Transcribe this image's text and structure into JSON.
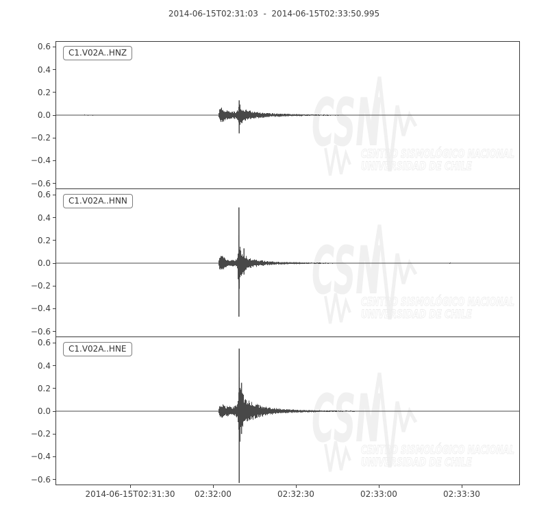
{
  "title": "2014-06-15T02:31:03  -  2014-06-15T02:33:50.995",
  "colors": {
    "background": "#ffffff",
    "trace": "#484848",
    "frame": "#3a3a3a",
    "text": "#3d3d3d",
    "label_text": "#333333",
    "label_border": "#7d7d7d",
    "watermark": "#f0f0f0",
    "watermark_outline": "#ececec"
  },
  "watermark": {
    "logo": "CSN",
    "line1": "CENTRO SISMOLÓGICO NACIONAL",
    "line2": "UNIVERSIDAD DE CHILE"
  },
  "chart_data": {
    "type": "line",
    "title": "2014-06-15T02:31:03  -  2014-06-15T02:33:50.995",
    "start_time": "2014-06-15T02:31:03",
    "end_time": "2014-06-15T02:33:50.995",
    "duration_s": 167.995,
    "xlabel": "",
    "ylabel": "",
    "grid": false,
    "legend_position": "none",
    "ylim": [
      -0.65,
      0.65
    ],
    "yticks": [
      0.6,
      0.4,
      0.2,
      0.0,
      -0.2,
      -0.4,
      -0.6
    ],
    "xticks": [
      {
        "t": 27,
        "label": "2014-06-15T02:31:30"
      },
      {
        "t": 57,
        "label": "02:32:00"
      },
      {
        "t": 87,
        "label": "02:32:30"
      },
      {
        "t": 117,
        "label": "02:33:00"
      },
      {
        "t": 147,
        "label": "02:33:30"
      }
    ],
    "series": [
      {
        "id": "hnz",
        "name": "C1.V02A..HNZ",
        "peak_amplitude": 0.16,
        "p_arrival_s": 59.3,
        "s_arrival_s": 66.4,
        "envelope": [
          [
            0,
            0.0015
          ],
          [
            8,
            0.0015
          ],
          [
            9.7,
            0.0045
          ],
          [
            13.5,
            0.005
          ],
          [
            15.5,
            0.0015
          ],
          [
            57.5,
            0.0015
          ],
          [
            59.0,
            0.002
          ],
          [
            59.4,
            0.06
          ],
          [
            60.2,
            0.08
          ],
          [
            61.2,
            0.05
          ],
          [
            62.5,
            0.04
          ],
          [
            63.5,
            0.032
          ],
          [
            65.3,
            0.035
          ],
          [
            66.0,
            0.05
          ],
          [
            66.45,
            0.1
          ],
          [
            67.0,
            0.09
          ],
          [
            67.9,
            0.055
          ],
          [
            69.6,
            0.045
          ],
          [
            72.1,
            0.032
          ],
          [
            75.3,
            0.022
          ],
          [
            79.1,
            0.016
          ],
          [
            84,
            0.011
          ],
          [
            91.4,
            0.007
          ],
          [
            98.9,
            0.005
          ],
          [
            111,
            0.0035
          ],
          [
            128,
            0.0025
          ],
          [
            150,
            0.002
          ],
          [
            168,
            0.002
          ]
        ],
        "spikes": [
          {
            "t": 66.45,
            "up": 0.13,
            "down": 0.16
          }
        ]
      },
      {
        "id": "hnn",
        "name": "C1.V02A..HNN",
        "peak_amplitude": 0.49,
        "p_arrival_s": 59.3,
        "s_arrival_s": 66.35,
        "envelope": [
          [
            0,
            0.0015
          ],
          [
            8,
            0.0015
          ],
          [
            9.7,
            0.004
          ],
          [
            13,
            0.004
          ],
          [
            15,
            0.0015
          ],
          [
            57.5,
            0.0015
          ],
          [
            59.0,
            0.002
          ],
          [
            59.4,
            0.055
          ],
          [
            60.3,
            0.075
          ],
          [
            61.3,
            0.04
          ],
          [
            63,
            0.028
          ],
          [
            65,
            0.032
          ],
          [
            65.9,
            0.05
          ],
          [
            66.35,
            0.25
          ],
          [
            66.9,
            0.13
          ],
          [
            67.6,
            0.1
          ],
          [
            68.3,
            0.07
          ],
          [
            69.5,
            0.055
          ],
          [
            71,
            0.04
          ],
          [
            73,
            0.032
          ],
          [
            75.5,
            0.022
          ],
          [
            78.5,
            0.015
          ],
          [
            82,
            0.011
          ],
          [
            86.5,
            0.009
          ],
          [
            93,
            0.006
          ],
          [
            102,
            0.0045
          ],
          [
            113,
            0.0035
          ],
          [
            130,
            0.0028
          ],
          [
            141.8,
            0.0028
          ],
          [
            142.7,
            0.006
          ],
          [
            143.6,
            0.0025
          ],
          [
            168,
            0.002
          ]
        ],
        "spikes": [
          {
            "t": 66.35,
            "up": 0.49,
            "down": 0.47
          },
          {
            "t": 68.2,
            "up": 0.13,
            "down": 0.1
          }
        ]
      },
      {
        "id": "hne",
        "name": "C1.V02A..HNE",
        "peak_amplitude": 0.63,
        "p_arrival_s": 59.3,
        "s_arrival_s": 66.45,
        "envelope": [
          [
            0,
            0.0015
          ],
          [
            8,
            0.0015
          ],
          [
            9.5,
            0.004
          ],
          [
            12.5,
            0.004
          ],
          [
            14.5,
            0.0015
          ],
          [
            57.5,
            0.0015
          ],
          [
            59.0,
            0.002
          ],
          [
            59.4,
            0.055
          ],
          [
            60.4,
            0.065
          ],
          [
            61.5,
            0.042
          ],
          [
            62.8,
            0.048
          ],
          [
            64,
            0.04
          ],
          [
            65.3,
            0.05
          ],
          [
            66.0,
            0.07
          ],
          [
            66.45,
            0.3
          ],
          [
            67.1,
            0.22
          ],
          [
            67.7,
            0.16
          ],
          [
            68.5,
            0.12
          ],
          [
            69.8,
            0.1
          ],
          [
            71.5,
            0.08
          ],
          [
            73.3,
            0.06
          ],
          [
            75.5,
            0.045
          ],
          [
            78,
            0.032
          ],
          [
            81,
            0.024
          ],
          [
            84.5,
            0.017
          ],
          [
            89,
            0.012
          ],
          [
            95,
            0.008
          ],
          [
            103,
            0.0055
          ],
          [
            115,
            0.004
          ],
          [
            132,
            0.003
          ],
          [
            150,
            0.0022
          ],
          [
            168,
            0.002
          ]
        ],
        "spikes": [
          {
            "t": 66.45,
            "up": 0.55,
            "down": 0.63
          },
          {
            "t": 67.3,
            "up": 0.25,
            "down": 0.2
          }
        ]
      }
    ]
  }
}
